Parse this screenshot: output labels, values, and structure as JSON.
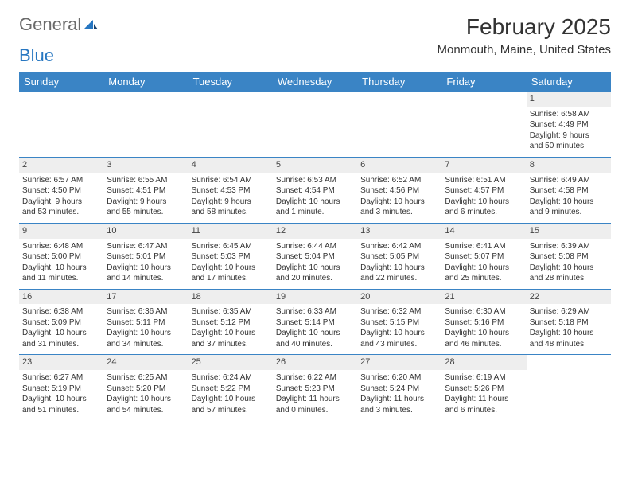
{
  "logo": {
    "part1": "General",
    "part2": "Blue"
  },
  "title": "February 2025",
  "location": "Monmouth, Maine, United States",
  "header_bg": "#3a84c5",
  "header_fg": "#ffffff",
  "daynum_bg": "#eeeeee",
  "rule_color": "#3a84c5",
  "font_family": "Arial",
  "title_fontsize": 28,
  "location_fontsize": 15,
  "header_fontsize": 13,
  "body_fontsize": 10,
  "week_names": [
    "Sunday",
    "Monday",
    "Tuesday",
    "Wednesday",
    "Thursday",
    "Friday",
    "Saturday"
  ],
  "weeks": [
    [
      {
        "n": "",
        "sr": "",
        "ss": "",
        "dl1": "",
        "dl2": ""
      },
      {
        "n": "",
        "sr": "",
        "ss": "",
        "dl1": "",
        "dl2": ""
      },
      {
        "n": "",
        "sr": "",
        "ss": "",
        "dl1": "",
        "dl2": ""
      },
      {
        "n": "",
        "sr": "",
        "ss": "",
        "dl1": "",
        "dl2": ""
      },
      {
        "n": "",
        "sr": "",
        "ss": "",
        "dl1": "",
        "dl2": ""
      },
      {
        "n": "",
        "sr": "",
        "ss": "",
        "dl1": "",
        "dl2": ""
      },
      {
        "n": "1",
        "sr": "Sunrise: 6:58 AM",
        "ss": "Sunset: 4:49 PM",
        "dl1": "Daylight: 9 hours",
        "dl2": "and 50 minutes."
      }
    ],
    [
      {
        "n": "2",
        "sr": "Sunrise: 6:57 AM",
        "ss": "Sunset: 4:50 PM",
        "dl1": "Daylight: 9 hours",
        "dl2": "and 53 minutes."
      },
      {
        "n": "3",
        "sr": "Sunrise: 6:55 AM",
        "ss": "Sunset: 4:51 PM",
        "dl1": "Daylight: 9 hours",
        "dl2": "and 55 minutes."
      },
      {
        "n": "4",
        "sr": "Sunrise: 6:54 AM",
        "ss": "Sunset: 4:53 PM",
        "dl1": "Daylight: 9 hours",
        "dl2": "and 58 minutes."
      },
      {
        "n": "5",
        "sr": "Sunrise: 6:53 AM",
        "ss": "Sunset: 4:54 PM",
        "dl1": "Daylight: 10 hours",
        "dl2": "and 1 minute."
      },
      {
        "n": "6",
        "sr": "Sunrise: 6:52 AM",
        "ss": "Sunset: 4:56 PM",
        "dl1": "Daylight: 10 hours",
        "dl2": "and 3 minutes."
      },
      {
        "n": "7",
        "sr": "Sunrise: 6:51 AM",
        "ss": "Sunset: 4:57 PM",
        "dl1": "Daylight: 10 hours",
        "dl2": "and 6 minutes."
      },
      {
        "n": "8",
        "sr": "Sunrise: 6:49 AM",
        "ss": "Sunset: 4:58 PM",
        "dl1": "Daylight: 10 hours",
        "dl2": "and 9 minutes."
      }
    ],
    [
      {
        "n": "9",
        "sr": "Sunrise: 6:48 AM",
        "ss": "Sunset: 5:00 PM",
        "dl1": "Daylight: 10 hours",
        "dl2": "and 11 minutes."
      },
      {
        "n": "10",
        "sr": "Sunrise: 6:47 AM",
        "ss": "Sunset: 5:01 PM",
        "dl1": "Daylight: 10 hours",
        "dl2": "and 14 minutes."
      },
      {
        "n": "11",
        "sr": "Sunrise: 6:45 AM",
        "ss": "Sunset: 5:03 PM",
        "dl1": "Daylight: 10 hours",
        "dl2": "and 17 minutes."
      },
      {
        "n": "12",
        "sr": "Sunrise: 6:44 AM",
        "ss": "Sunset: 5:04 PM",
        "dl1": "Daylight: 10 hours",
        "dl2": "and 20 minutes."
      },
      {
        "n": "13",
        "sr": "Sunrise: 6:42 AM",
        "ss": "Sunset: 5:05 PM",
        "dl1": "Daylight: 10 hours",
        "dl2": "and 22 minutes."
      },
      {
        "n": "14",
        "sr": "Sunrise: 6:41 AM",
        "ss": "Sunset: 5:07 PM",
        "dl1": "Daylight: 10 hours",
        "dl2": "and 25 minutes."
      },
      {
        "n": "15",
        "sr": "Sunrise: 6:39 AM",
        "ss": "Sunset: 5:08 PM",
        "dl1": "Daylight: 10 hours",
        "dl2": "and 28 minutes."
      }
    ],
    [
      {
        "n": "16",
        "sr": "Sunrise: 6:38 AM",
        "ss": "Sunset: 5:09 PM",
        "dl1": "Daylight: 10 hours",
        "dl2": "and 31 minutes."
      },
      {
        "n": "17",
        "sr": "Sunrise: 6:36 AM",
        "ss": "Sunset: 5:11 PM",
        "dl1": "Daylight: 10 hours",
        "dl2": "and 34 minutes."
      },
      {
        "n": "18",
        "sr": "Sunrise: 6:35 AM",
        "ss": "Sunset: 5:12 PM",
        "dl1": "Daylight: 10 hours",
        "dl2": "and 37 minutes."
      },
      {
        "n": "19",
        "sr": "Sunrise: 6:33 AM",
        "ss": "Sunset: 5:14 PM",
        "dl1": "Daylight: 10 hours",
        "dl2": "and 40 minutes."
      },
      {
        "n": "20",
        "sr": "Sunrise: 6:32 AM",
        "ss": "Sunset: 5:15 PM",
        "dl1": "Daylight: 10 hours",
        "dl2": "and 43 minutes."
      },
      {
        "n": "21",
        "sr": "Sunrise: 6:30 AM",
        "ss": "Sunset: 5:16 PM",
        "dl1": "Daylight: 10 hours",
        "dl2": "and 46 minutes."
      },
      {
        "n": "22",
        "sr": "Sunrise: 6:29 AM",
        "ss": "Sunset: 5:18 PM",
        "dl1": "Daylight: 10 hours",
        "dl2": "and 48 minutes."
      }
    ],
    [
      {
        "n": "23",
        "sr": "Sunrise: 6:27 AM",
        "ss": "Sunset: 5:19 PM",
        "dl1": "Daylight: 10 hours",
        "dl2": "and 51 minutes."
      },
      {
        "n": "24",
        "sr": "Sunrise: 6:25 AM",
        "ss": "Sunset: 5:20 PM",
        "dl1": "Daylight: 10 hours",
        "dl2": "and 54 minutes."
      },
      {
        "n": "25",
        "sr": "Sunrise: 6:24 AM",
        "ss": "Sunset: 5:22 PM",
        "dl1": "Daylight: 10 hours",
        "dl2": "and 57 minutes."
      },
      {
        "n": "26",
        "sr": "Sunrise: 6:22 AM",
        "ss": "Sunset: 5:23 PM",
        "dl1": "Daylight: 11 hours",
        "dl2": "and 0 minutes."
      },
      {
        "n": "27",
        "sr": "Sunrise: 6:20 AM",
        "ss": "Sunset: 5:24 PM",
        "dl1": "Daylight: 11 hours",
        "dl2": "and 3 minutes."
      },
      {
        "n": "28",
        "sr": "Sunrise: 6:19 AM",
        "ss": "Sunset: 5:26 PM",
        "dl1": "Daylight: 11 hours",
        "dl2": "and 6 minutes."
      },
      {
        "n": "",
        "sr": "",
        "ss": "",
        "dl1": "",
        "dl2": ""
      }
    ]
  ]
}
